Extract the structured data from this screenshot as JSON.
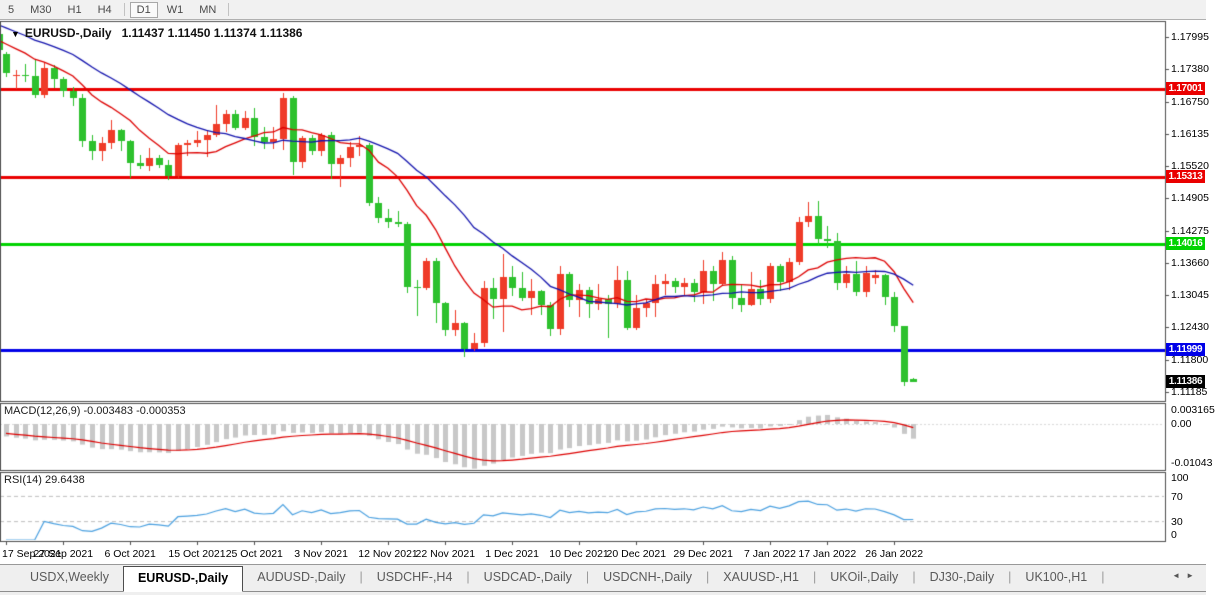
{
  "toolbar": {
    "timeframes": [
      "5",
      "M30",
      "H1",
      "H4",
      "D1",
      "W1",
      "MN"
    ],
    "active": "D1"
  },
  "chart": {
    "title_symbol": "EURUSD-,Daily",
    "title_ohlc": "1.11437 1.11450 1.11374 1.11386"
  },
  "chart_data": {
    "type": "candlestick",
    "symbol": "EURUSD-,Daily",
    "timeframe": "Daily",
    "up_color": "#ef3b28",
    "down_color": "#2dc12d",
    "y_axis": {
      "ticks": [
        "1.17995",
        "1.17380",
        "1.16750",
        "1.16135",
        "1.15520",
        "1.14905",
        "1.14275",
        "1.13660",
        "1.13045",
        "1.12430",
        "1.11800",
        "1.11185"
      ]
    },
    "hlines": [
      {
        "label": "1.17001",
        "price": 1.17001,
        "color": "#ea0000"
      },
      {
        "label": "1.15313",
        "price": 1.15313,
        "color": "#ea0000"
      },
      {
        "label": "1.14016",
        "price": 1.14016,
        "color": "#00d300"
      },
      {
        "label": "1.11999",
        "price": 1.11999,
        "color": "#0000e8"
      }
    ],
    "current_price": {
      "label": "1.11386",
      "price": 1.11386,
      "badge_color": "#000000"
    },
    "x_labels": [
      {
        "label": "17 Sep 2021",
        "bar": 0
      },
      {
        "label": "27 Sep 2021",
        "bar": 6
      },
      {
        "label": "6 Oct 2021",
        "bar": 13
      },
      {
        "label": "15 Oct 2021",
        "bar": 20
      },
      {
        "label": "25 Oct 2021",
        "bar": 26
      },
      {
        "label": "3 Nov 2021",
        "bar": 33
      },
      {
        "label": "12 Nov 2021",
        "bar": 40
      },
      {
        "label": "22 Nov 2021",
        "bar": 46
      },
      {
        "label": "1 Dec 2021",
        "bar": 53
      },
      {
        "label": "10 Dec 2021",
        "bar": 60
      },
      {
        "label": "20 Dec 2021",
        "bar": 66
      },
      {
        "label": "29 Dec 2021",
        "bar": 73
      },
      {
        "label": "7 Jan 2022",
        "bar": 80
      },
      {
        "label": "17 Jan 2022",
        "bar": 86
      },
      {
        "label": "26 Jan 2022",
        "bar": 93
      }
    ],
    "ma_fast": {
      "period": 10,
      "color": "#dd0000"
    },
    "ma_slow": {
      "period": 20,
      "color": "#1212ad"
    },
    "macd": {
      "label": "MACD(12,26,9) -0.003483 -0.000353",
      "params": [
        12,
        26,
        9
      ],
      "main": -0.003483,
      "signal": -0.000353,
      "axis_labels": [
        {
          "text": "0.003165",
          "value": 0.003165
        },
        {
          "text": "0.00",
          "value": 0
        },
        {
          "text": "-0.01043",
          "value": -0.01043
        }
      ],
      "bar_color": "#c8c8c8",
      "signal_color": "#dd0000"
    },
    "rsi": {
      "label": "RSI(14) 29.6438",
      "period": 14,
      "value": 29.6438,
      "levels": [
        100,
        70,
        30,
        0
      ],
      "dashed_levels": [
        70,
        30
      ],
      "line_color": "#4aa0e0"
    },
    "candles": [
      [
        1.1766,
        1.177,
        1.1722,
        1.173
      ],
      [
        1.1725,
        1.1737,
        1.17,
        1.1726
      ],
      [
        1.1726,
        1.1748,
        1.1714,
        1.1724
      ],
      [
        1.1724,
        1.1756,
        1.1684,
        1.1688
      ],
      [
        1.1688,
        1.175,
        1.1683,
        1.174
      ],
      [
        1.174,
        1.1745,
        1.1701,
        1.1718
      ],
      [
        1.1718,
        1.1722,
        1.1683,
        1.1695
      ],
      [
        1.1695,
        1.1703,
        1.1667,
        1.1683
      ],
      [
        1.1683,
        1.169,
        1.1589,
        1.16
      ],
      [
        1.16,
        1.1611,
        1.1563,
        1.158
      ],
      [
        1.158,
        1.1608,
        1.1562,
        1.1596
      ],
      [
        1.1596,
        1.1641,
        1.1586,
        1.1622
      ],
      [
        1.1622,
        1.1623,
        1.1581,
        1.16
      ],
      [
        1.16,
        1.1602,
        1.1529,
        1.1558
      ],
      [
        1.1558,
        1.1573,
        1.1546,
        1.1552
      ],
      [
        1.1552,
        1.1587,
        1.1543,
        1.1568
      ],
      [
        1.1568,
        1.1573,
        1.1549,
        1.1554
      ],
      [
        1.1554,
        1.1563,
        1.1524,
        1.1532
      ],
      [
        1.1532,
        1.1597,
        1.1529,
        1.1592
      ],
      [
        1.1592,
        1.1602,
        1.1572,
        1.1597
      ],
      [
        1.1597,
        1.1619,
        1.1588,
        1.1601
      ],
      [
        1.1601,
        1.1622,
        1.1571,
        1.1611
      ],
      [
        1.1611,
        1.167,
        1.1609,
        1.1633
      ],
      [
        1.1633,
        1.1659,
        1.1617,
        1.1652
      ],
      [
        1.1652,
        1.166,
        1.1621,
        1.1625
      ],
      [
        1.1625,
        1.1657,
        1.1621,
        1.1645
      ],
      [
        1.1645,
        1.1664,
        1.1591,
        1.1608
      ],
      [
        1.1608,
        1.1627,
        1.1585,
        1.1598
      ],
      [
        1.1598,
        1.1626,
        1.1584,
        1.1603
      ],
      [
        1.1603,
        1.1692,
        1.1582,
        1.1682
      ],
      [
        1.1682,
        1.1686,
        1.1535,
        1.156
      ],
      [
        1.156,
        1.161,
        1.1549,
        1.1606
      ],
      [
        1.1606,
        1.1612,
        1.1574,
        1.158
      ],
      [
        1.158,
        1.1616,
        1.1572,
        1.1611
      ],
      [
        1.1611,
        1.1617,
        1.1527,
        1.1555
      ],
      [
        1.1555,
        1.1574,
        1.1513,
        1.1567
      ],
      [
        1.1567,
        1.1599,
        1.1551,
        1.1589
      ],
      [
        1.1589,
        1.1609,
        1.157,
        1.1593
      ],
      [
        1.1593,
        1.1596,
        1.1476,
        1.1481
      ],
      [
        1.1481,
        1.1492,
        1.1443,
        1.1452
      ],
      [
        1.1452,
        1.1469,
        1.1432,
        1.1445
      ],
      [
        1.1445,
        1.1465,
        1.1435,
        1.144
      ],
      [
        1.144,
        1.1444,
        1.1308,
        1.132
      ],
      [
        1.132,
        1.1333,
        1.1263,
        1.1318
      ],
      [
        1.1318,
        1.1375,
        1.1313,
        1.137
      ],
      [
        1.137,
        1.1375,
        1.125,
        1.1289
      ],
      [
        1.1289,
        1.1292,
        1.1226,
        1.1237
      ],
      [
        1.1237,
        1.1276,
        1.1226,
        1.1251
      ],
      [
        1.1251,
        1.1253,
        1.1186,
        1.1201
      ],
      [
        1.1201,
        1.1231,
        1.1196,
        1.1212
      ],
      [
        1.1212,
        1.1331,
        1.1205,
        1.1318
      ],
      [
        1.1318,
        1.1337,
        1.1258,
        1.1296
      ],
      [
        1.1296,
        1.1384,
        1.1235,
        1.134
      ],
      [
        1.134,
        1.1361,
        1.1304,
        1.1318
      ],
      [
        1.1318,
        1.1349,
        1.1293,
        1.1299
      ],
      [
        1.1299,
        1.1335,
        1.1266,
        1.1312
      ],
      [
        1.1312,
        1.1315,
        1.1267,
        1.1286
      ],
      [
        1.1286,
        1.1291,
        1.1226,
        1.1239
      ],
      [
        1.1239,
        1.136,
        1.1228,
        1.1344
      ],
      [
        1.1344,
        1.1348,
        1.128,
        1.1295
      ],
      [
        1.1295,
        1.1325,
        1.1262,
        1.1314
      ],
      [
        1.1314,
        1.132,
        1.126,
        1.1287
      ],
      [
        1.1287,
        1.1326,
        1.1277,
        1.1297
      ],
      [
        1.1297,
        1.1304,
        1.1222,
        1.1288
      ],
      [
        1.1288,
        1.1361,
        1.1281,
        1.1334
      ],
      [
        1.1334,
        1.135,
        1.1236,
        1.1241
      ],
      [
        1.1241,
        1.1305,
        1.1237,
        1.1279
      ],
      [
        1.1279,
        1.1296,
        1.1262,
        1.129
      ],
      [
        1.129,
        1.1343,
        1.1263,
        1.1325
      ],
      [
        1.1325,
        1.1345,
        1.1304,
        1.1332
      ],
      [
        1.1332,
        1.1338,
        1.1309,
        1.1319
      ],
      [
        1.1319,
        1.1337,
        1.1302,
        1.1327
      ],
      [
        1.1327,
        1.1335,
        1.1291,
        1.1311
      ],
      [
        1.1311,
        1.1371,
        1.1287,
        1.135
      ],
      [
        1.135,
        1.1361,
        1.1294,
        1.1326
      ],
      [
        1.1326,
        1.1387,
        1.1321,
        1.1371
      ],
      [
        1.1371,
        1.138,
        1.1279,
        1.1298
      ],
      [
        1.1298,
        1.1325,
        1.1272,
        1.1286
      ],
      [
        1.1286,
        1.1348,
        1.1282,
        1.1316
      ],
      [
        1.1316,
        1.1333,
        1.1285,
        1.1296
      ],
      [
        1.1296,
        1.1366,
        1.129,
        1.1361
      ],
      [
        1.1361,
        1.1364,
        1.1313,
        1.1329
      ],
      [
        1.1329,
        1.1376,
        1.1315,
        1.1368
      ],
      [
        1.1368,
        1.1454,
        1.1362,
        1.1445
      ],
      [
        1.1445,
        1.1483,
        1.1436,
        1.1456
      ],
      [
        1.1456,
        1.1484,
        1.1399,
        1.1412
      ],
      [
        1.1412,
        1.1436,
        1.1393,
        1.1408
      ],
      [
        1.1408,
        1.1423,
        1.1314,
        1.1327
      ],
      [
        1.1327,
        1.1361,
        1.1319,
        1.1345
      ],
      [
        1.1345,
        1.137,
        1.1302,
        1.1311
      ],
      [
        1.1311,
        1.1361,
        1.1301,
        1.1346
      ],
      [
        1.1338,
        1.1352,
        1.1326,
        1.1342
      ],
      [
        1.1342,
        1.1344,
        1.1285,
        1.1301
      ],
      [
        1.1301,
        1.1311,
        1.1235,
        1.1245
      ],
      [
        1.1245,
        1.1246,
        1.1131,
        1.1137
      ],
      [
        1.11437,
        1.1145,
        1.11374,
        1.11386
      ]
    ]
  },
  "tabs": {
    "items": [
      "USDX,Weekly",
      "EURUSD-,Daily",
      "AUDUSD-,Daily",
      "USDCHF-,H4",
      "USDCAD-,Daily",
      "USDCNH-,Daily",
      "XAUUSD-,H1",
      "UKOil-,Daily",
      "DJ30-,Daily",
      "UK100-,H1"
    ],
    "active": "EURUSD-,Daily"
  },
  "scrollbar": {
    "left_arrow": "◄",
    "right_arrow": "►"
  }
}
